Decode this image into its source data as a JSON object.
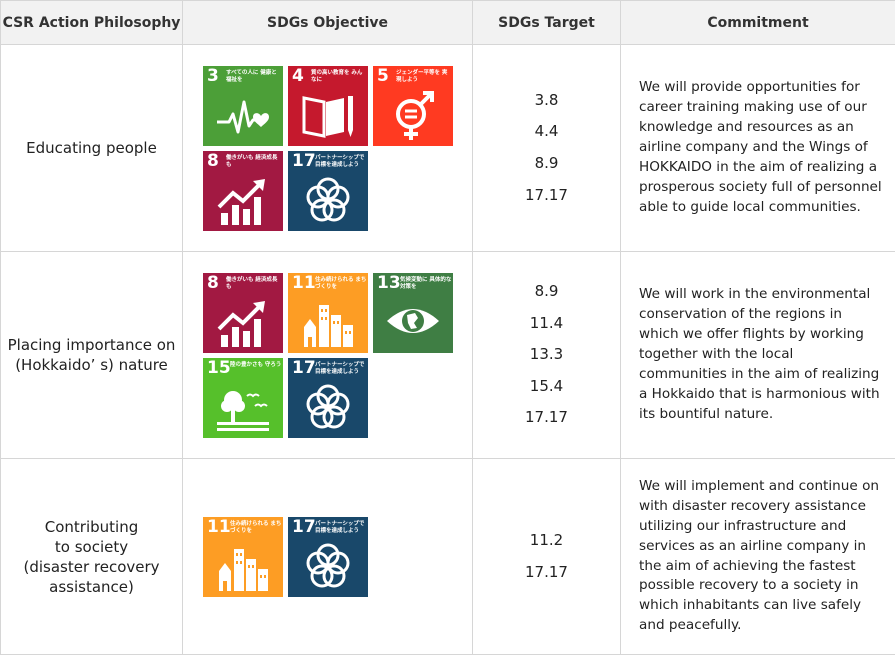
{
  "headers": [
    "CSR Action Philosophy",
    "SDGs Objective",
    "SDGs Target",
    "Commitment"
  ],
  "rows": [
    {
      "philosophy_lines": [
        "Educating people"
      ],
      "targets": [
        "3.8",
        "4.4",
        "8.9",
        "17.17"
      ],
      "commitment": "We will provide opportunities for career training making use of our knowledge and resources as an airline company and the Wings of HOKKAIDO in the aim of realizing a prosperous society full of personnel able to guide local communities."
    },
    {
      "philosophy_lines": [
        "Placing importance on",
        "(Hokkaido’ s) nature"
      ],
      "targets": [
        "8.9",
        "11.4",
        "13.3",
        "15.4",
        "17.17"
      ],
      "commitment": "We will work in the environmental conservation of the regions in which we offer flights by working together with the local communities in the aim of realizing a Hokkaido that is harmonious with its bountiful nature."
    },
    {
      "philosophy_lines": [
        "Contributing",
        "to society",
        "(disaster recovery",
        "assistance)"
      ],
      "targets": [
        "11.2",
        "17.17"
      ],
      "commitment": "We will implement and continue on with disaster recovery assistance utilizing our infrastructure and services as an airline company in the aim of achieving the fastest possible recovery to a society in which inhabitants can live safely and peacefully."
    }
  ],
  "sdg_icons": {
    "3": {
      "num": "3",
      "jp": "すべての人に 健康と福祉を",
      "color": "#4c9f38",
      "icon": "heartbeat-icon"
    },
    "4": {
      "num": "4",
      "jp": "質の高い教育を みんなに",
      "color": "#c5192d",
      "icon": "book-pencil-icon"
    },
    "5": {
      "num": "5",
      "jp": "ジェンダー平等を 実現しよう",
      "color": "#ff3a21",
      "icon": "gender-equality-icon"
    },
    "8": {
      "num": "8",
      "jp": "働きがいも 経済成長も",
      "color": "#a21942",
      "icon": "growth-chart-icon"
    },
    "11": {
      "num": "11",
      "jp": "住み続けられる まちづくりを",
      "color": "#fd9d24",
      "icon": "city-buildings-icon"
    },
    "13": {
      "num": "13",
      "jp": "気候変動に 具体的な対策を",
      "color": "#3f7e44",
      "icon": "earth-eye-icon"
    },
    "15": {
      "num": "15",
      "jp": "陸の豊かさも 守ろう",
      "color": "#56c02b",
      "icon": "tree-birds-icon"
    },
    "17": {
      "num": "17",
      "jp": "パートナーシップで 目標を達成しよう",
      "color": "#19486a",
      "icon": "rings-flower-icon"
    }
  }
}
